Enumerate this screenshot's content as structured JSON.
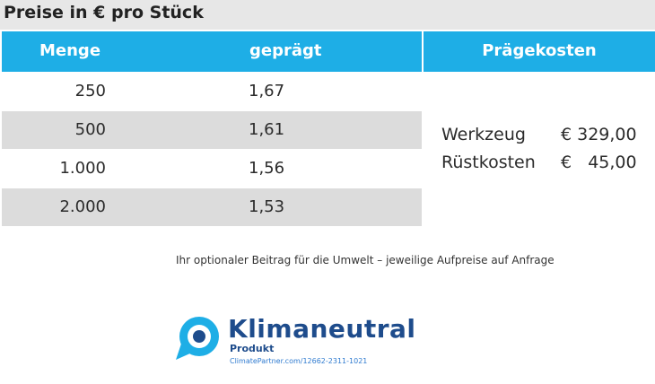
{
  "title": "Preise in € pro Stück",
  "table": {
    "col_menge": "Menge",
    "col_gepraegt": "geprägt",
    "rows": [
      {
        "menge": "250",
        "gepraegt": "1,67"
      },
      {
        "menge": "500",
        "gepraegt": "1,61"
      },
      {
        "menge": "1.000",
        "gepraegt": "1,56"
      },
      {
        "menge": "2.000",
        "gepraegt": "1,53"
      }
    ]
  },
  "praegekosten": {
    "header": "Prägekosten",
    "items": [
      {
        "label": "Werkzeug",
        "value": "€ 329,00"
      },
      {
        "label": "Rüstkosten",
        "value": "€   45,00"
      }
    ]
  },
  "note": "Ihr optionaler Beitrag für die Umwelt – jeweilige Aufpreise auf Anfrage",
  "logo": {
    "brand": "Klimaneutral",
    "sub": "Produkt",
    "url": "ClimatePartner.com/12662-2311-1021"
  },
  "colors": {
    "header_blue": "#1eaee6",
    "title_bg": "#e7e7e7",
    "row_alt": "#dcdcdc",
    "logo_blue": "#1e4c8c"
  }
}
